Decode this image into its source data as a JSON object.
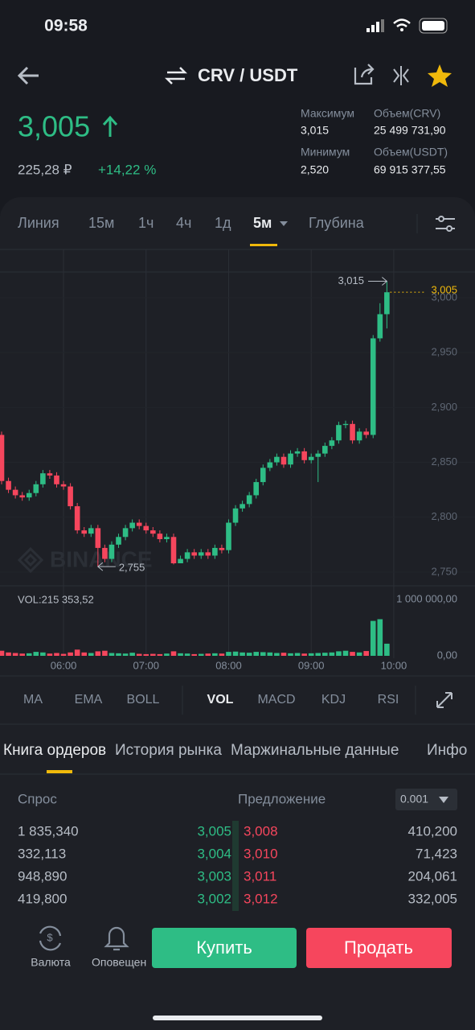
{
  "status_bar": {
    "time": "09:58"
  },
  "header": {
    "pair": "CRV / USDT"
  },
  "ticker": {
    "price": "3,005",
    "price_rub": "225,28 ₽",
    "change": "+14,22 %",
    "stats": [
      {
        "label": "Максимум",
        "value": "3,015"
      },
      {
        "label": "Объем(CRV)",
        "value": "25 499 731,90"
      },
      {
        "label": "Минимум",
        "value": "2,520"
      },
      {
        "label": "Объем(USDT)",
        "value": "69 915 377,55"
      }
    ]
  },
  "chart_tabs": [
    "Линия",
    "15м",
    "1ч",
    "4ч",
    "1д",
    "5м",
    "Глубина"
  ],
  "chart_data": {
    "type": "candlestick",
    "watermark": "BINANCE",
    "grid": true,
    "up_color": "#2ebd85",
    "down_color": "#f6465d",
    "x": [
      "05:15",
      "05:20",
      "05:25",
      "05:30",
      "05:35",
      "05:40",
      "05:45",
      "05:50",
      "05:55",
      "06:00",
      "06:05",
      "06:10",
      "06:15",
      "06:20",
      "06:25",
      "06:30",
      "06:35",
      "06:40",
      "06:45",
      "06:50",
      "06:55",
      "07:00",
      "07:05",
      "07:10",
      "07:15",
      "07:20",
      "07:25",
      "07:30",
      "07:35",
      "07:40",
      "07:45",
      "07:50",
      "07:55",
      "08:00",
      "08:05",
      "08:10",
      "08:15",
      "08:20",
      "08:25",
      "08:30",
      "08:35",
      "08:40",
      "08:45",
      "08:50",
      "08:55",
      "09:00",
      "09:05",
      "09:10",
      "09:15",
      "09:20",
      "09:25",
      "09:30",
      "09:35",
      "09:40",
      "09:45",
      "09:50",
      "09:55"
    ],
    "open": [
      2.875,
      2.833,
      2.825,
      2.82,
      2.818,
      2.822,
      2.83,
      2.84,
      2.838,
      2.83,
      2.828,
      2.81,
      2.788,
      2.785,
      2.79,
      2.772,
      2.762,
      2.775,
      2.782,
      2.79,
      2.795,
      2.792,
      2.788,
      2.785,
      2.78,
      2.782,
      2.758,
      2.762,
      2.768,
      2.765,
      2.768,
      2.765,
      2.772,
      2.77,
      2.795,
      2.808,
      2.812,
      2.82,
      2.832,
      2.845,
      2.85,
      2.855,
      2.848,
      2.858,
      2.86,
      2.852,
      2.855,
      2.858,
      2.865,
      2.87,
      2.884,
      2.885,
      2.87,
      2.878,
      2.875,
      2.963,
      2.985
    ],
    "high": [
      2.878,
      2.836,
      2.828,
      2.823,
      2.825,
      2.833,
      2.843,
      2.843,
      2.841,
      2.833,
      2.831,
      2.813,
      2.791,
      2.793,
      2.793,
      2.775,
      2.778,
      2.785,
      2.793,
      2.798,
      2.798,
      2.795,
      2.791,
      2.788,
      2.785,
      2.785,
      2.765,
      2.771,
      2.771,
      2.771,
      2.771,
      2.775,
      2.775,
      2.798,
      2.811,
      2.815,
      2.823,
      2.835,
      2.848,
      2.853,
      2.858,
      2.858,
      2.861,
      2.863,
      2.863,
      2.858,
      2.861,
      2.868,
      2.873,
      2.887,
      2.888,
      2.888,
      2.881,
      2.881,
      2.966,
      2.995,
      3.015
    ],
    "low": [
      2.83,
      2.822,
      2.817,
      2.815,
      2.815,
      2.819,
      2.827,
      2.835,
      2.827,
      2.825,
      2.807,
      2.785,
      2.782,
      2.782,
      2.755,
      2.759,
      2.759,
      2.772,
      2.779,
      2.787,
      2.789,
      2.785,
      2.782,
      2.777,
      2.777,
      2.757,
      2.758,
      2.759,
      2.762,
      2.762,
      2.762,
      2.762,
      2.767,
      2.767,
      2.792,
      2.805,
      2.809,
      2.817,
      2.829,
      2.842,
      2.847,
      2.845,
      2.845,
      2.855,
      2.849,
      2.849,
      2.832,
      2.855,
      2.862,
      2.867,
      2.881,
      2.867,
      2.867,
      2.872,
      2.872,
      2.96,
      2.972
    ],
    "close": [
      2.833,
      2.825,
      2.82,
      2.818,
      2.822,
      2.83,
      2.84,
      2.838,
      2.83,
      2.828,
      2.81,
      2.788,
      2.785,
      2.79,
      2.772,
      2.762,
      2.775,
      2.782,
      2.79,
      2.795,
      2.792,
      2.788,
      2.785,
      2.78,
      2.782,
      2.758,
      2.762,
      2.768,
      2.765,
      2.768,
      2.765,
      2.772,
      2.77,
      2.795,
      2.808,
      2.812,
      2.82,
      2.832,
      2.845,
      2.85,
      2.855,
      2.848,
      2.858,
      2.86,
      2.852,
      2.855,
      2.858,
      2.865,
      2.87,
      2.884,
      2.885,
      2.87,
      2.878,
      2.875,
      2.963,
      2.985,
      3.005
    ],
    "volume": [
      90000,
      60000,
      50000,
      40000,
      45000,
      70000,
      60000,
      40000,
      50000,
      35000,
      60000,
      110000,
      60000,
      50000,
      80000,
      90000,
      50000,
      45000,
      40000,
      55000,
      35000,
      30000,
      35000,
      30000,
      40000,
      80000,
      45000,
      40000,
      30000,
      35000,
      40000,
      45000,
      40000,
      70000,
      75000,
      60000,
      55000,
      70000,
      65000,
      60000,
      50000,
      55000,
      45000,
      50000,
      40000,
      45000,
      50000,
      55000,
      60000,
      80000,
      90000,
      70000,
      60000,
      85000,
      620000,
      650000,
      215353.52
    ],
    "volume_label": "VOL:215 353,52",
    "ylim": [
      2.736,
      3.044
    ],
    "yticks": [
      {
        "value": 3.0,
        "label": "3,000"
      },
      {
        "value": 2.95,
        "label": "2,950"
      },
      {
        "value": 2.9,
        "label": "2,900"
      },
      {
        "value": 2.85,
        "label": "2,850"
      },
      {
        "value": 2.8,
        "label": "2,800"
      },
      {
        "value": 2.75,
        "label": "2,750"
      }
    ],
    "volume_lim": [
      0,
      1000000
    ],
    "volume_ticks": [
      {
        "value": 1000000,
        "label": "1 000 000,00"
      },
      {
        "value": 0,
        "label": "0,00"
      }
    ],
    "xticks": [
      "06:00",
      "07:00",
      "08:00",
      "09:00",
      "10:00"
    ],
    "last_price": {
      "value": 3.005,
      "label": "3,005"
    },
    "high_marker": {
      "value": 3.015,
      "label": "3,015"
    },
    "low_marker": {
      "value": 2.755,
      "label": "2,755"
    }
  },
  "indicators": [
    "MA",
    "EMA",
    "BOLL",
    "VOL",
    "MACD",
    "KDJ",
    "RSI"
  ],
  "book_tabs": [
    "Книга ордеров",
    "История рынка",
    "Маржинальные данные",
    "Инфо"
  ],
  "order_book": {
    "bid_header": "Спрос",
    "ask_header": "Предложение",
    "precision": "0.001",
    "rows": [
      [
        "1 835,340",
        "3,005",
        "3,008",
        "410,200"
      ],
      [
        "332,113",
        "3,004",
        "3,010",
        "71,423"
      ],
      [
        "948,890",
        "3,003",
        "3,011",
        "204,061"
      ],
      [
        "419,800",
        "3,002",
        "3,012",
        "332,005"
      ]
    ]
  },
  "bottom_bar": {
    "currency": "Валюта",
    "alerts": "Оповещен",
    "buy": "Купить",
    "sell": "Продать"
  }
}
